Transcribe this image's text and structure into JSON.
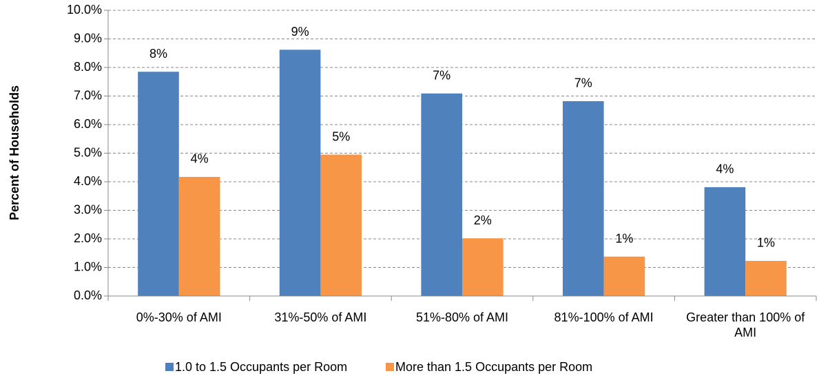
{
  "chart_data": {
    "type": "bar",
    "y_label": "Percent of Households",
    "categories": [
      "0%-30% of AMI",
      "31%-50% of AMI",
      "51%-80% of AMI",
      "81%-100% of AMI",
      "Greater than 100% of AMI"
    ],
    "series": [
      {
        "name": "1.0 to 1.5 Occupants per Room",
        "color": "#4f81bd",
        "values": [
          7.85,
          8.62,
          7.09,
          6.82,
          3.81
        ],
        "value_labels": [
          "8%",
          "9%",
          "7%",
          "7%",
          "4%"
        ]
      },
      {
        "name": "More than 1.5 Occupants per Room",
        "color": "#f79646",
        "values": [
          4.17,
          4.95,
          2.02,
          1.38,
          1.23
        ],
        "value_labels": [
          "4%",
          "5%",
          "2%",
          "1%",
          "1%"
        ]
      }
    ],
    "ylim": [
      0,
      10
    ],
    "yticks": [
      {
        "value": 0,
        "label": "0.0%"
      },
      {
        "value": 1,
        "label": "1.0%"
      },
      {
        "value": 2,
        "label": "2.0%"
      },
      {
        "value": 3,
        "label": "3.0%"
      },
      {
        "value": 4,
        "label": "4.0%"
      },
      {
        "value": 5,
        "label": "5.0%"
      },
      {
        "value": 6,
        "label": "6.0%"
      },
      {
        "value": 7,
        "label": "7.0%"
      },
      {
        "value": 8,
        "label": "8.0%"
      },
      {
        "value": 9,
        "label": "9.0%"
      },
      {
        "value": 10,
        "label": "10.0%"
      }
    ],
    "grid": true,
    "legend": "bottom"
  }
}
